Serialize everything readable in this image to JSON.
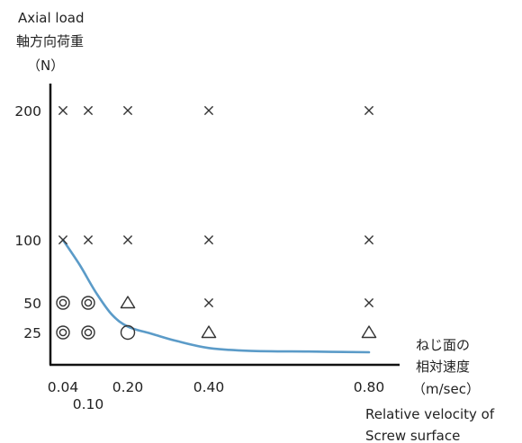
{
  "chart_data": {
    "type": "scatter",
    "ylabel_en": "Axial load",
    "ylabel_ja": "軸方向荷重",
    "yunit": "（N）",
    "xlabel_ja_1": "ねじ面の",
    "xlabel_ja_2": "相対速度",
    "xunit": "（m/sec）",
    "xlabel_en_1": "Relative velocity of",
    "xlabel_en_2": "Screw surface",
    "x_ticks": [
      {
        "value": 0.04,
        "label": "0.04"
      },
      {
        "value": 0.1,
        "label": "0.10"
      },
      {
        "value": 0.2,
        "label": "0.20"
      },
      {
        "value": 0.4,
        "label": "0.40"
      },
      {
        "value": 0.8,
        "label": "0.80"
      }
    ],
    "y_ticks": [
      {
        "value": 25,
        "label": "25"
      },
      {
        "value": 50,
        "label": "50"
      },
      {
        "value": 100,
        "label": "100"
      },
      {
        "value": 200,
        "label": "200"
      }
    ],
    "symbols": {
      "double_circle": "◎",
      "circle": "○",
      "triangle": "△",
      "cross": "×"
    },
    "points": [
      {
        "x": 0.04,
        "y": 200,
        "mark": "cross"
      },
      {
        "x": 0.1,
        "y": 200,
        "mark": "cross"
      },
      {
        "x": 0.2,
        "y": 200,
        "mark": "cross"
      },
      {
        "x": 0.4,
        "y": 200,
        "mark": "cross"
      },
      {
        "x": 0.8,
        "y": 200,
        "mark": "cross"
      },
      {
        "x": 0.04,
        "y": 100,
        "mark": "cross"
      },
      {
        "x": 0.1,
        "y": 100,
        "mark": "cross"
      },
      {
        "x": 0.2,
        "y": 100,
        "mark": "cross"
      },
      {
        "x": 0.4,
        "y": 100,
        "mark": "cross"
      },
      {
        "x": 0.8,
        "y": 100,
        "mark": "cross"
      },
      {
        "x": 0.04,
        "y": 50,
        "mark": "double_circle"
      },
      {
        "x": 0.1,
        "y": 50,
        "mark": "double_circle"
      },
      {
        "x": 0.2,
        "y": 50,
        "mark": "triangle"
      },
      {
        "x": 0.4,
        "y": 50,
        "mark": "cross"
      },
      {
        "x": 0.8,
        "y": 50,
        "mark": "cross"
      },
      {
        "x": 0.04,
        "y": 25,
        "mark": "double_circle"
      },
      {
        "x": 0.1,
        "y": 25,
        "mark": "double_circle"
      },
      {
        "x": 0.2,
        "y": 25,
        "mark": "circle"
      },
      {
        "x": 0.4,
        "y": 25,
        "mark": "triangle"
      },
      {
        "x": 0.8,
        "y": 25,
        "mark": "triangle"
      }
    ],
    "limit_curve": {
      "color": "#5b9bc8",
      "points": [
        {
          "x": 0.04,
          "y": 100
        },
        {
          "x": 0.08,
          "y": 80
        },
        {
          "x": 0.12,
          "y": 58
        },
        {
          "x": 0.16,
          "y": 40
        },
        {
          "x": 0.2,
          "y": 30
        },
        {
          "x": 0.26,
          "y": 24
        },
        {
          "x": 0.32,
          "y": 19
        },
        {
          "x": 0.4,
          "y": 14
        },
        {
          "x": 0.5,
          "y": 12
        },
        {
          "x": 0.65,
          "y": 11.5
        },
        {
          "x": 0.8,
          "y": 11
        }
      ]
    }
  }
}
